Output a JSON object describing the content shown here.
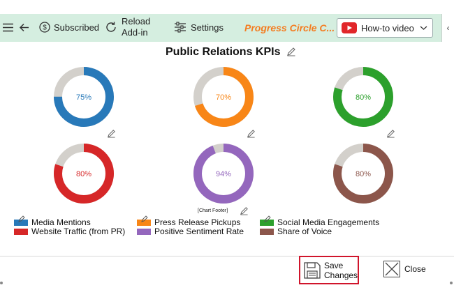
{
  "toolbar": {
    "subscribed_label": "Subscribed",
    "reload_label_line1": "Reload",
    "reload_label_line2": "Add-in",
    "settings_label": "Settings",
    "progress_label": "Progress Circle C...",
    "video_label": "How-to video",
    "colors": {
      "background": "#d5eee0",
      "progress_text": "#f47c20",
      "youtube_red": "#e1262a"
    }
  },
  "chart_data": {
    "type": "donut",
    "title": "Public Relations KPIs",
    "footer": "[Chart Footer]",
    "series": [
      {
        "name": "Media Mentions",
        "value": 75,
        "label": "75%",
        "color": "#2879b9"
      },
      {
        "name": "Press Release Pickups",
        "value": 70,
        "label": "70%",
        "color": "#f88617"
      },
      {
        "name": "Social Media Engagements",
        "value": 80,
        "label": "80%",
        "color": "#2ca02c"
      },
      {
        "name": "Website Traffic (from PR)",
        "value": 80,
        "label": "80%",
        "color": "#d62728"
      },
      {
        "name": "Positive Sentiment Rate",
        "value": 94,
        "label": "94%",
        "color": "#9467bd"
      },
      {
        "name": "Share of Voice",
        "value": 80,
        "label": "80%",
        "color": "#8c564b"
      }
    ],
    "track_color": "#d3d0cb"
  },
  "actions": {
    "save_line1": "Save",
    "save_line2": "Changes",
    "close_label": "Close"
  }
}
